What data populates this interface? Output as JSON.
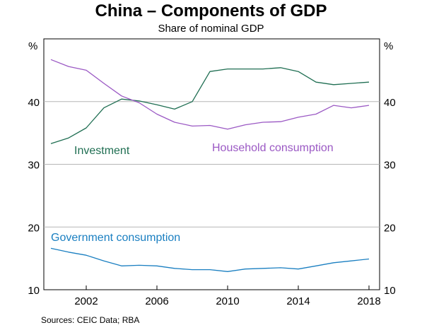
{
  "chart_data": {
    "type": "line",
    "title": "China – Components of GDP",
    "subtitle": "Share of nominal GDP",
    "source": "Sources:  CEIC Data; RBA",
    "ylabel_left": "%",
    "ylabel_right": "%",
    "ylim": [
      10,
      50
    ],
    "xlim": [
      1999.6,
      2018.6
    ],
    "yticks": [
      10,
      20,
      30,
      40
    ],
    "xticks": [
      2002,
      2006,
      2010,
      2014,
      2018
    ],
    "grid": true,
    "x": [
      2000,
      2001,
      2002,
      2003,
      2004,
      2005,
      2006,
      2007,
      2008,
      2009,
      2010,
      2011,
      2012,
      2013,
      2014,
      2015,
      2016,
      2017,
      2018
    ],
    "series": [
      {
        "name": "Investment",
        "color": "#1f6e52",
        "values": [
          33.3,
          34.2,
          35.8,
          39.0,
          40.4,
          40.1,
          39.5,
          38.8,
          40.0,
          44.8,
          45.2,
          45.2,
          45.2,
          45.4,
          44.8,
          43.1,
          42.7,
          42.9,
          43.1
        ]
      },
      {
        "name": "Household consumption",
        "color": "#9b59c4",
        "values": [
          46.7,
          45.6,
          45.0,
          42.9,
          40.9,
          39.8,
          38.0,
          36.7,
          36.1,
          36.2,
          35.6,
          36.3,
          36.7,
          36.8,
          37.5,
          38.0,
          39.4,
          39.0,
          39.4
        ]
      },
      {
        "name": "Government consumption",
        "color": "#1a7fc1",
        "values": [
          16.6,
          16.0,
          15.5,
          14.6,
          13.8,
          13.9,
          13.8,
          13.4,
          13.2,
          13.2,
          12.9,
          13.3,
          13.4,
          13.5,
          13.3,
          13.8,
          14.3,
          14.6,
          14.9
        ]
      }
    ]
  }
}
